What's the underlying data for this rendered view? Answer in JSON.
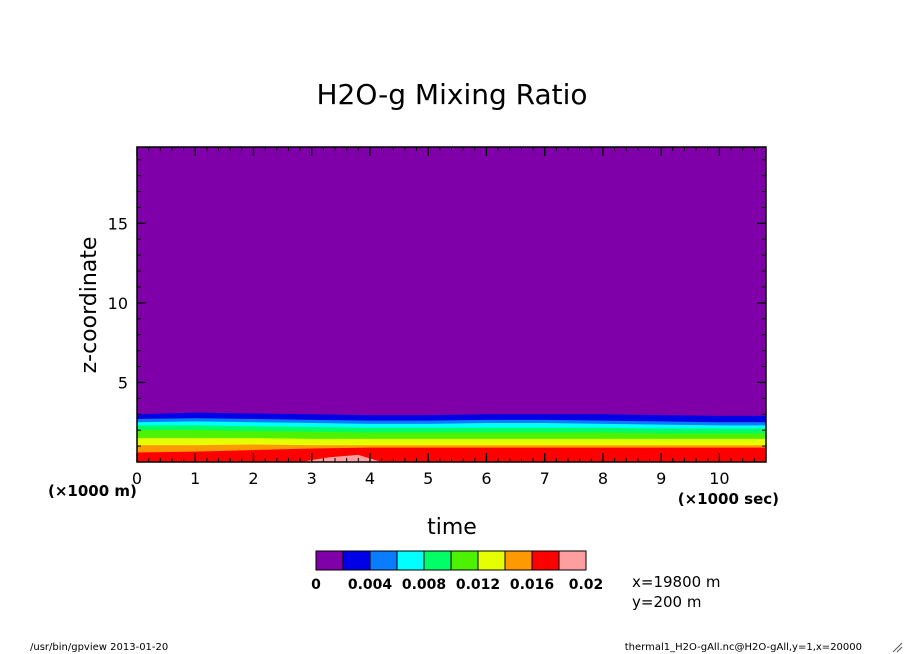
{
  "chart_data": {
    "type": "contour",
    "title": "H2O-g Mixing Ratio",
    "xlabel": "time",
    "ylabel": "z-coordinate",
    "x_unit": "(×1000 sec)",
    "y_unit": "(×1000 m)",
    "xlim": [
      0,
      10.8
    ],
    "ylim": [
      0,
      19.8
    ],
    "x_ticks": [
      0,
      1,
      2,
      3,
      4,
      5,
      6,
      7,
      8,
      9,
      10
    ],
    "y_ticks": [
      5,
      10,
      15
    ],
    "levels": [
      0,
      0.002,
      0.004,
      0.006,
      0.008,
      0.01,
      0.012,
      0.014,
      0.016,
      0.018,
      0.02
    ],
    "colorbar_labels": [
      "0",
      "0.004",
      "0.008",
      "0.012",
      "0.016",
      "0.02"
    ],
    "colors": [
      "#7f00a8",
      "#0000e6",
      "#0a7dff",
      "#00ffff",
      "#00ff66",
      "#4df200",
      "#e6ff00",
      "#ff9900",
      "#ff0000",
      "#ff9e9e"
    ],
    "band_tops_km": {
      "x": [
        0,
        1,
        2,
        3,
        4,
        5,
        6,
        7,
        8,
        9,
        10,
        10.8
      ],
      "series": [
        {
          "level": 0.002,
          "values": [
            3.0,
            3.1,
            3.05,
            3.0,
            2.95,
            2.95,
            3.0,
            3.0,
            3.0,
            2.95,
            2.9,
            2.9
          ]
        },
        {
          "level": 0.004,
          "values": [
            2.7,
            2.75,
            2.7,
            2.65,
            2.6,
            2.6,
            2.65,
            2.65,
            2.6,
            2.55,
            2.5,
            2.5
          ]
        },
        {
          "level": 0.006,
          "values": [
            2.5,
            2.55,
            2.5,
            2.45,
            2.4,
            2.4,
            2.45,
            2.45,
            2.4,
            2.35,
            2.3,
            2.3
          ]
        },
        {
          "level": 0.008,
          "values": [
            2.3,
            2.3,
            2.25,
            2.2,
            2.15,
            2.15,
            2.15,
            2.15,
            2.15,
            2.1,
            2.1,
            2.1
          ]
        },
        {
          "level": 0.01,
          "values": [
            2.0,
            2.0,
            1.95,
            1.9,
            1.85,
            1.85,
            1.85,
            1.85,
            1.85,
            1.8,
            1.8,
            1.8
          ]
        },
        {
          "level": 0.012,
          "values": [
            1.5,
            1.5,
            1.5,
            1.45,
            1.45,
            1.45,
            1.45,
            1.45,
            1.45,
            1.45,
            1.45,
            1.45
          ]
        },
        {
          "level": 0.014,
          "values": [
            1.05,
            1.05,
            1.1,
            1.05,
            1.05,
            1.05,
            1.05,
            1.05,
            1.05,
            1.05,
            1.05,
            1.05
          ]
        },
        {
          "level": 0.016,
          "values": [
            0.6,
            0.65,
            0.75,
            0.85,
            0.9,
            0.9,
            0.9,
            0.9,
            0.9,
            0.9,
            0.9,
            0.9
          ]
        }
      ]
    },
    "pink_region": {
      "x": [
        2.8,
        3.3,
        3.8,
        4.2
      ],
      "values": [
        0.0,
        0.3,
        0.45,
        0.0
      ]
    }
  },
  "coords": {
    "line1": "x=19800  m",
    "line2": "y=200  m"
  },
  "footer": {
    "left": "/usr/bin/gpview  2013-01-20",
    "right": "thermal1_H2O-gAll.nc@H2O-gAll,y=1,x=20000"
  }
}
